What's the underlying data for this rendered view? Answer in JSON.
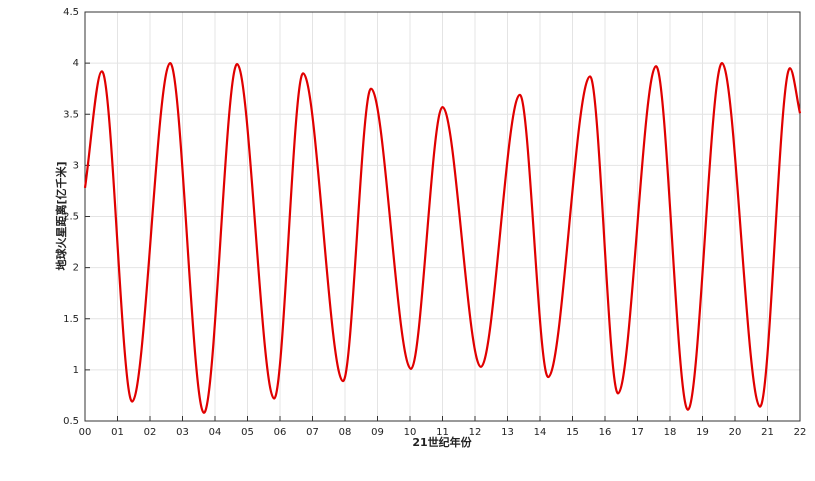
{
  "chart_data": {
    "type": "line",
    "xlabel": "21世纪年份",
    "ylabel": "地球火星距离[亿千米]",
    "x": [
      0,
      0.52,
      1.45,
      2.62,
      3.66,
      4.68,
      5.82,
      6.71,
      7.94,
      8.8,
      10.03,
      11.0,
      12.18,
      13.38,
      14.25,
      15.54,
      16.4,
      17.57,
      18.55,
      19.6,
      20.77,
      21.69,
      22
    ],
    "series": [
      {
        "color": "#e00000",
        "values": [
          2.78,
          3.92,
          0.69,
          4.0,
          0.58,
          3.99,
          0.72,
          3.9,
          0.89,
          3.75,
          1.01,
          3.57,
          1.03,
          3.69,
          0.93,
          3.87,
          0.77,
          3.97,
          0.61,
          4.0,
          0.64,
          3.95,
          3.51
        ]
      }
    ],
    "xlim": [
      0,
      22
    ],
    "xticks": [
      {
        "value": 0,
        "label": "00"
      },
      {
        "value": 1,
        "label": "01"
      },
      {
        "value": 2,
        "label": "02"
      },
      {
        "value": 3,
        "label": "03"
      },
      {
        "value": 4,
        "label": "04"
      },
      {
        "value": 5,
        "label": "05"
      },
      {
        "value": 6,
        "label": "06"
      },
      {
        "value": 7,
        "label": "07"
      },
      {
        "value": 8,
        "label": "08"
      },
      {
        "value": 9,
        "label": "09"
      },
      10,
      11,
      12,
      13,
      14,
      15,
      16,
      17,
      18,
      19,
      20,
      21,
      22
    ],
    "ylim": [
      0.5,
      4.5
    ],
    "yticks": [
      0.5,
      1,
      1.5,
      2,
      2.5,
      3,
      3.5,
      4,
      4.5
    ],
    "grid": true
  }
}
